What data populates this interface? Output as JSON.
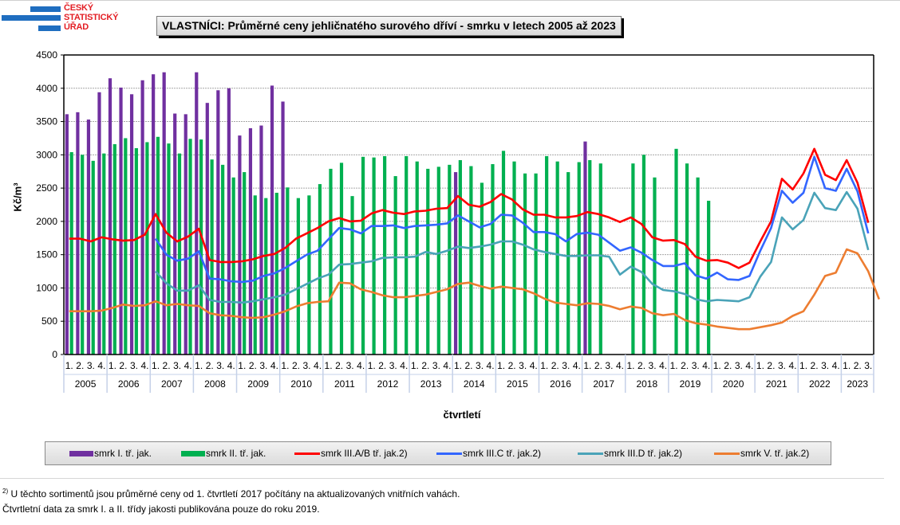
{
  "logo": {
    "line1": "ČESKÝ",
    "line2": "STATISTICKÝ",
    "line3": "ÚŘAD"
  },
  "header": {
    "title": "VLASTNÍCI: Průměrné ceny jehličnatého surového dříví - smrku v letech 2005 až 2023"
  },
  "chart_data": {
    "type": "bar+line",
    "title": "VLASTNÍCI: Průměrné ceny jehličnatého surového dříví - smrku v letech 2005 až 2023",
    "xlabel": "čtvrtletí",
    "ylabel": "Kč/m³",
    "ylim": [
      0,
      4500
    ],
    "yticks": [
      0,
      500,
      1000,
      1500,
      2000,
      2500,
      3000,
      3500,
      4000,
      4500
    ],
    "grid": true,
    "legend_position": "bottom",
    "years": [
      "2005",
      "2006",
      "2007",
      "2008",
      "2009",
      "2010",
      "2011",
      "2012",
      "2013",
      "2014",
      "2015",
      "2016",
      "2017",
      "2018",
      "2019",
      "2020",
      "2021",
      "2022",
      "2023"
    ],
    "quarter_labels": [
      "1.",
      "2.",
      "3.",
      "4."
    ],
    "quarters_per_year": [
      4,
      4,
      4,
      4,
      4,
      4,
      4,
      4,
      4,
      4,
      4,
      4,
      4,
      4,
      4,
      4,
      4,
      4,
      3
    ],
    "series": [
      {
        "name": "smrk I. tř. jak.",
        "kind": "bar",
        "color": "#7030a0",
        "values": [
          3610,
          3640,
          3530,
          3940,
          4150,
          4010,
          3910,
          4120,
          4210,
          4240,
          3620,
          3610,
          4240,
          3780,
          3970,
          4000,
          3290,
          3400,
          3440,
          4040,
          3800,
          null,
          null,
          null,
          null,
          null,
          null,
          null,
          null,
          null,
          null,
          null,
          null,
          null,
          null,
          null,
          2740,
          null,
          null,
          null,
          null,
          null,
          null,
          null,
          null,
          null,
          null,
          null,
          3200,
          null,
          null,
          null,
          null,
          null,
          null,
          null,
          null,
          null,
          null,
          null,
          null,
          null,
          null,
          null,
          null,
          null,
          null,
          null,
          null,
          null,
          null,
          null,
          null,
          null,
          null
        ]
      },
      {
        "name": "smrk II. tř. jak.",
        "kind": "bar",
        "color": "#00b050",
        "values": [
          3040,
          3000,
          2910,
          3020,
          3160,
          3250,
          3100,
          3190,
          3270,
          3170,
          3020,
          3240,
          3230,
          2930,
          2850,
          2660,
          2740,
          2390,
          2350,
          2430,
          2510,
          2350,
          2390,
          2560,
          2790,
          2880,
          2380,
          2970,
          2960,
          2980,
          2680,
          2980,
          2900,
          2790,
          2820,
          2850,
          2920,
          2830,
          2580,
          2860,
          3060,
          2900,
          2720,
          2720,
          2980,
          2900,
          2740,
          2890,
          2920,
          2870,
          null,
          null,
          2870,
          3000,
          2660,
          null,
          3090,
          2870,
          2660,
          2310,
          null,
          null,
          null,
          null,
          null,
          null,
          null,
          null,
          null,
          null,
          null,
          null,
          null,
          null,
          null
        ]
      },
      {
        "name": "smrk III.A/B tř. jak.2)",
        "kind": "line",
        "color": "#ff0000",
        "values": [
          1740,
          1740,
          1700,
          1760,
          1730,
          1710,
          1720,
          1800,
          2110,
          1830,
          1700,
          1770,
          1890,
          1420,
          1390,
          1390,
          1400,
          1430,
          1480,
          1510,
          1600,
          1740,
          1820,
          1900,
          2000,
          2050,
          2000,
          2010,
          2120,
          2170,
          2130,
          2110,
          2150,
          2160,
          2190,
          2200,
          2380,
          2250,
          2220,
          2290,
          2410,
          2330,
          2180,
          2100,
          2100,
          2060,
          2060,
          2080,
          2140,
          2110,
          2060,
          1990,
          2060,
          1960,
          1760,
          1710,
          1720,
          1660,
          1470,
          1410,
          1420,
          1380,
          1300,
          1380,
          1700,
          2000,
          2640,
          2480,
          2720,
          3090,
          2700,
          2620,
          2920,
          2580,
          1980
        ]
      },
      {
        "name": "smrk III.C tř. jak.2)",
        "kind": "line",
        "color": "#3366ff",
        "values": [
          null,
          null,
          null,
          null,
          null,
          null,
          null,
          null,
          1740,
          1500,
          1410,
          1440,
          1550,
          1140,
          1130,
          1100,
          1090,
          1110,
          1180,
          1220,
          1300,
          1400,
          1500,
          1560,
          1730,
          1900,
          1880,
          1820,
          1930,
          1930,
          1940,
          1900,
          1930,
          1940,
          1950,
          1970,
          2090,
          2000,
          1910,
          1960,
          2100,
          2090,
          1980,
          1840,
          1840,
          1810,
          1700,
          1810,
          1830,
          1800,
          1680,
          1560,
          1610,
          1530,
          1420,
          1330,
          1330,
          1370,
          1190,
          1140,
          1230,
          1130,
          1120,
          1180,
          1560,
          1900,
          2460,
          2280,
          2430,
          2970,
          2500,
          2460,
          2790,
          2450,
          1820
        ]
      },
      {
        "name": "smrk III.D tř. jak.2)",
        "kind": "line",
        "color": "#4aa3b8",
        "values": [
          null,
          null,
          null,
          null,
          null,
          null,
          null,
          null,
          1250,
          1070,
          960,
          960,
          1040,
          820,
          790,
          790,
          780,
          800,
          830,
          860,
          900,
          980,
          1060,
          1140,
          1200,
          1350,
          1360,
          1380,
          1400,
          1450,
          1460,
          1460,
          1470,
          1540,
          1510,
          1560,
          1620,
          1600,
          1620,
          1650,
          1700,
          1700,
          1650,
          1580,
          1540,
          1510,
          1480,
          1480,
          1490,
          1490,
          1470,
          1200,
          1320,
          1240,
          1060,
          970,
          950,
          910,
          830,
          800,
          820,
          810,
          800,
          860,
          1170,
          1390,
          2060,
          1880,
          2020,
          2430,
          2200,
          2170,
          2440,
          2190,
          1570
        ]
      },
      {
        "name": "smrk V. tř. jak.2)",
        "kind": "line",
        "color": "#ed7d31",
        "values": [
          650,
          650,
          650,
          660,
          700,
          750,
          730,
          740,
          800,
          740,
          760,
          740,
          730,
          620,
          590,
          580,
          560,
          550,
          560,
          600,
          650,
          720,
          770,
          790,
          800,
          1080,
          1070,
          980,
          940,
          890,
          860,
          860,
          880,
          900,
          940,
          980,
          1060,
          1080,
          1030,
          990,
          1020,
          1000,
          980,
          920,
          840,
          780,
          760,
          740,
          770,
          760,
          730,
          680,
          720,
          700,
          620,
          590,
          610,
          520,
          470,
          450,
          420,
          400,
          380,
          380,
          410,
          440,
          480,
          580,
          650,
          900,
          1180,
          1230,
          1580,
          1520,
          1250,
          830
        ]
      }
    ]
  },
  "legend": {
    "items": [
      {
        "label": "smrk I. tř. jak."
      },
      {
        "label": "smrk II. tř. jak."
      },
      {
        "label": "smrk III.A/B tř. jak.2)"
      },
      {
        "label": "smrk III.C tř. jak.2)"
      },
      {
        "label": "smrk III.D tř. jak.2)"
      },
      {
        "label": "smrk V. tř. jak.2)"
      }
    ]
  },
  "footnotes": {
    "marker": "2)",
    "line1": " U těchto sortimentů jsou průměrné ceny od 1. čtvrtletí 2017 počítány na aktualizovaných vnitřních vahách.",
    "line2": "Čtvrtletní data za smrk I. a II. třídy jakosti publikována pouze do roku 2019."
  }
}
